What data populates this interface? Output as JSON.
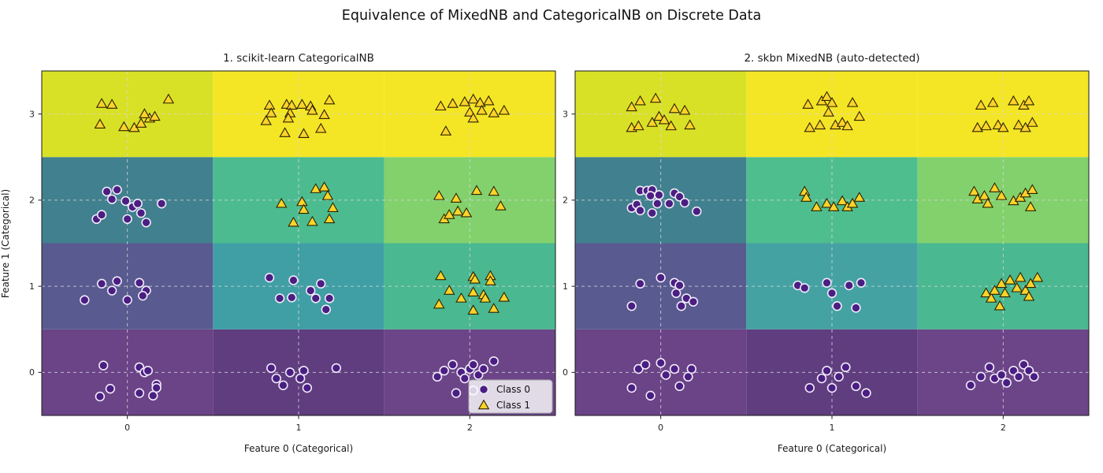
{
  "figure": {
    "title": "Equivalence of MixedNB and CategoricalNB on Discrete Data",
    "background": "#ffffff"
  },
  "chart_data": {
    "type": "scatter",
    "subtype": "decision-regions-with-scatter",
    "x_range": [
      -0.5,
      2.5
    ],
    "y_range": [
      -0.5,
      3.5
    ],
    "x_ticks": [
      0,
      1,
      2
    ],
    "y_ticks": [
      0,
      1,
      2,
      3
    ],
    "xlabel": "Feature 0 (Categorical)",
    "ylabel": "Feature 1 (Categorical)",
    "grid": {
      "visible": true,
      "style": "dashed",
      "color": "#d8d8d8"
    },
    "classes": [
      {
        "name": "Class 0",
        "marker": "circle",
        "fill": "#4a1e82",
        "edge": "#f0ebf8"
      },
      {
        "name": "Class 1",
        "marker": "triangle",
        "fill": "#fdd32a",
        "edge": "#2b2200"
      }
    ],
    "panels": [
      {
        "title": "1. scikit-learn CategoricalNB",
        "legend": {
          "visible": true,
          "location": "lower right",
          "items": [
            "Class 0",
            "Class 1"
          ]
        },
        "cell_colors": [
          [
            "#6b4387",
            "#603d7f",
            "#6c4588"
          ],
          [
            "#585a90",
            "#3f9fa5",
            "#4ab890"
          ],
          [
            "#41808e",
            "#4cbc90",
            "#82d16d"
          ],
          [
            "#d9e126",
            "#f4e625",
            "#f4e625"
          ]
        ],
        "class0_points": [
          [
            -0.12,
            2.1
          ],
          [
            -0.06,
            2.12
          ],
          [
            -0.09,
            2.01
          ],
          [
            -0.01,
            1.99
          ],
          [
            0.03,
            1.92
          ],
          [
            0.06,
            1.96
          ],
          [
            0.0,
            1.78
          ],
          [
            -0.18,
            1.78
          ],
          [
            0.08,
            1.85
          ],
          [
            0.2,
            1.96
          ],
          [
            0.11,
            1.74
          ],
          [
            -0.15,
            1.83
          ],
          [
            -0.25,
            0.84
          ],
          [
            -0.15,
            1.03
          ],
          [
            -0.06,
            1.06
          ],
          [
            -0.09,
            0.95
          ],
          [
            0.0,
            0.84
          ],
          [
            0.07,
            1.04
          ],
          [
            0.11,
            0.95
          ],
          [
            0.09,
            0.89
          ],
          [
            0.83,
            1.1
          ],
          [
            0.89,
            0.86
          ],
          [
            0.96,
            0.87
          ],
          [
            0.97,
            1.07
          ],
          [
            1.07,
            0.95
          ],
          [
            1.1,
            0.86
          ],
          [
            1.13,
            1.03
          ],
          [
            1.18,
            0.86
          ],
          [
            1.16,
            0.73
          ],
          [
            -0.14,
            0.08
          ],
          [
            0.07,
            0.06
          ],
          [
            0.1,
            0.0
          ],
          [
            0.12,
            0.02
          ],
          [
            0.17,
            -0.14
          ],
          [
            0.17,
            -0.18
          ],
          [
            -0.1,
            -0.19
          ],
          [
            -0.16,
            -0.28
          ],
          [
            0.07,
            -0.24
          ],
          [
            0.15,
            -0.27
          ],
          [
            0.84,
            0.05
          ],
          [
            0.91,
            -0.15
          ],
          [
            0.95,
            0.0
          ],
          [
            1.03,
            0.02
          ],
          [
            1.01,
            -0.07
          ],
          [
            1.05,
            -0.18
          ],
          [
            1.22,
            0.05
          ],
          [
            0.87,
            -0.07
          ],
          [
            1.81,
            -0.05
          ],
          [
            1.85,
            0.02
          ],
          [
            1.9,
            0.09
          ],
          [
            1.95,
            0.0
          ],
          [
            1.97,
            -0.07
          ],
          [
            2.0,
            0.04
          ],
          [
            2.02,
            0.09
          ],
          [
            2.05,
            -0.03
          ],
          [
            2.08,
            0.04
          ],
          [
            2.14,
            0.13
          ],
          [
            2.02,
            -0.21
          ],
          [
            1.92,
            -0.24
          ]
        ],
        "class1_points": [
          [
            -0.15,
            3.12
          ],
          [
            -0.09,
            3.11
          ],
          [
            -0.16,
            2.88
          ],
          [
            -0.02,
            2.85
          ],
          [
            0.04,
            2.84
          ],
          [
            0.08,
            2.89
          ],
          [
            0.13,
            2.95
          ],
          [
            0.1,
            3.0
          ],
          [
            0.16,
            2.97
          ],
          [
            0.24,
            3.17
          ],
          [
            0.83,
            3.1
          ],
          [
            0.93,
            3.11
          ],
          [
            0.96,
            3.1
          ],
          [
            1.02,
            3.11
          ],
          [
            1.07,
            3.09
          ],
          [
            1.18,
            3.16
          ],
          [
            0.84,
            3.01
          ],
          [
            0.95,
            3.01
          ],
          [
            1.08,
            3.04
          ],
          [
            1.15,
            2.99
          ],
          [
            0.81,
            2.92
          ],
          [
            0.94,
            2.95
          ],
          [
            0.92,
            2.78
          ],
          [
            1.03,
            2.77
          ],
          [
            1.13,
            2.83
          ],
          [
            1.83,
            3.09
          ],
          [
            1.9,
            3.12
          ],
          [
            1.97,
            3.14
          ],
          [
            2.02,
            3.17
          ],
          [
            2.06,
            3.13
          ],
          [
            2.11,
            3.15
          ],
          [
            2.0,
            3.02
          ],
          [
            2.07,
            3.04
          ],
          [
            2.14,
            3.01
          ],
          [
            2.2,
            3.04
          ],
          [
            2.02,
            2.95
          ],
          [
            1.86,
            2.8
          ],
          [
            1.1,
            2.13
          ],
          [
            1.15,
            2.15
          ],
          [
            1.17,
            2.05
          ],
          [
            0.9,
            1.96
          ],
          [
            1.02,
            1.98
          ],
          [
            1.03,
            1.89
          ],
          [
            1.2,
            1.91
          ],
          [
            1.18,
            1.78
          ],
          [
            0.97,
            1.74
          ],
          [
            1.08,
            1.75
          ],
          [
            1.82,
            2.05
          ],
          [
            1.92,
            2.02
          ],
          [
            2.04,
            2.11
          ],
          [
            2.14,
            2.1
          ],
          [
            2.18,
            1.93
          ],
          [
            1.85,
            1.78
          ],
          [
            1.88,
            1.83
          ],
          [
            1.93,
            1.87
          ],
          [
            1.98,
            1.85
          ],
          [
            1.83,
            1.12
          ],
          [
            2.02,
            1.11
          ],
          [
            2.03,
            1.08
          ],
          [
            2.12,
            1.12
          ],
          [
            2.12,
            1.06
          ],
          [
            1.88,
            0.95
          ],
          [
            2.02,
            0.93
          ],
          [
            2.08,
            0.9
          ],
          [
            2.09,
            0.86
          ],
          [
            2.2,
            0.87
          ],
          [
            1.95,
            0.86
          ],
          [
            1.82,
            0.79
          ],
          [
            2.02,
            0.72
          ],
          [
            2.14,
            0.74
          ]
        ]
      },
      {
        "title": "2. skbn MixedNB (auto-detected)",
        "legend": {
          "visible": false,
          "location": "",
          "items": []
        },
        "cell_colors": [
          [
            "#6b4387",
            "#603d7f",
            "#6c4588"
          ],
          [
            "#585a90",
            "#44a2a3",
            "#4ab890"
          ],
          [
            "#41808e",
            "#4fbe8e",
            "#82d16d"
          ],
          [
            "#d9e126",
            "#f4e625",
            "#f4e625"
          ]
        ],
        "class0_points": [
          [
            -0.12,
            2.11
          ],
          [
            -0.08,
            2.11
          ],
          [
            -0.05,
            2.12
          ],
          [
            -0.06,
            2.05
          ],
          [
            -0.01,
            2.06
          ],
          [
            -0.02,
            1.96
          ],
          [
            0.05,
            1.96
          ],
          [
            0.08,
            2.08
          ],
          [
            0.11,
            2.04
          ],
          [
            0.14,
            1.97
          ],
          [
            -0.17,
            1.91
          ],
          [
            -0.14,
            1.95
          ],
          [
            -0.12,
            1.88
          ],
          [
            -0.05,
            1.85
          ],
          [
            0.21,
            1.87
          ],
          [
            -0.17,
            0.77
          ],
          [
            -0.12,
            1.03
          ],
          [
            0.0,
            1.1
          ],
          [
            0.08,
            1.04
          ],
          [
            0.11,
            1.01
          ],
          [
            0.09,
            0.92
          ],
          [
            0.15,
            0.86
          ],
          [
            0.12,
            0.77
          ],
          [
            0.19,
            0.82
          ],
          [
            0.8,
            1.01
          ],
          [
            0.84,
            0.98
          ],
          [
            0.97,
            1.04
          ],
          [
            1.0,
            0.92
          ],
          [
            1.03,
            0.77
          ],
          [
            1.1,
            1.01
          ],
          [
            1.14,
            0.75
          ],
          [
            1.17,
            1.04
          ],
          [
            -0.17,
            -0.18
          ],
          [
            -0.13,
            0.04
          ],
          [
            -0.09,
            0.09
          ],
          [
            -0.06,
            -0.27
          ],
          [
            0.0,
            0.11
          ],
          [
            0.03,
            -0.03
          ],
          [
            0.08,
            0.04
          ],
          [
            0.11,
            -0.16
          ],
          [
            0.18,
            0.04
          ],
          [
            0.16,
            -0.05
          ],
          [
            0.87,
            -0.18
          ],
          [
            0.94,
            -0.07
          ],
          [
            0.97,
            0.02
          ],
          [
            1.0,
            -0.18
          ],
          [
            1.04,
            -0.05
          ],
          [
            1.08,
            0.06
          ],
          [
            1.14,
            -0.16
          ],
          [
            1.2,
            -0.24
          ],
          [
            1.81,
            -0.15
          ],
          [
            1.87,
            -0.05
          ],
          [
            1.92,
            0.06
          ],
          [
            1.95,
            -0.07
          ],
          [
            1.99,
            -0.03
          ],
          [
            2.02,
            -0.12
          ],
          [
            2.06,
            0.02
          ],
          [
            2.09,
            -0.05
          ],
          [
            2.12,
            0.09
          ],
          [
            2.15,
            0.02
          ],
          [
            2.18,
            -0.05
          ]
        ],
        "class1_points": [
          [
            -0.17,
            3.08
          ],
          [
            -0.12,
            3.15
          ],
          [
            -0.03,
            3.18
          ],
          [
            -0.17,
            2.84
          ],
          [
            -0.13,
            2.86
          ],
          [
            -0.05,
            2.9
          ],
          [
            -0.01,
            2.97
          ],
          [
            0.02,
            2.93
          ],
          [
            0.08,
            3.06
          ],
          [
            0.14,
            3.04
          ],
          [
            0.06,
            2.86
          ],
          [
            0.17,
            2.87
          ],
          [
            0.86,
            3.11
          ],
          [
            0.94,
            3.15
          ],
          [
            0.97,
            3.2
          ],
          [
            1.0,
            3.13
          ],
          [
            0.98,
            3.02
          ],
          [
            0.93,
            2.87
          ],
          [
            0.87,
            2.84
          ],
          [
            1.02,
            2.87
          ],
          [
            1.06,
            2.9
          ],
          [
            1.09,
            2.86
          ],
          [
            1.12,
            3.13
          ],
          [
            1.16,
            2.97
          ],
          [
            1.87,
            3.1
          ],
          [
            1.94,
            3.13
          ],
          [
            2.06,
            3.15
          ],
          [
            2.12,
            3.1
          ],
          [
            2.15,
            3.15
          ],
          [
            1.85,
            2.84
          ],
          [
            1.9,
            2.86
          ],
          [
            1.97,
            2.87
          ],
          [
            2.0,
            2.84
          ],
          [
            2.09,
            2.87
          ],
          [
            2.13,
            2.84
          ],
          [
            2.17,
            2.9
          ],
          [
            0.84,
            2.1
          ],
          [
            0.85,
            2.03
          ],
          [
            0.91,
            1.92
          ],
          [
            0.97,
            1.96
          ],
          [
            1.01,
            1.92
          ],
          [
            1.06,
            1.99
          ],
          [
            1.09,
            1.92
          ],
          [
            1.12,
            1.96
          ],
          [
            1.16,
            2.03
          ],
          [
            1.83,
            2.1
          ],
          [
            1.85,
            2.01
          ],
          [
            1.89,
            2.05
          ],
          [
            1.91,
            1.96
          ],
          [
            1.95,
            2.14
          ],
          [
            1.99,
            2.05
          ],
          [
            2.06,
            1.99
          ],
          [
            2.1,
            2.03
          ],
          [
            2.13,
            2.08
          ],
          [
            2.16,
            1.92
          ],
          [
            2.17,
            2.12
          ],
          [
            1.9,
            0.92
          ],
          [
            1.93,
            0.86
          ],
          [
            1.95,
            0.95
          ],
          [
            1.99,
            1.03
          ],
          [
            2.01,
            0.92
          ],
          [
            2.04,
            1.07
          ],
          [
            2.08,
            0.98
          ],
          [
            2.1,
            1.1
          ],
          [
            2.13,
            0.95
          ],
          [
            2.16,
            1.03
          ],
          [
            2.2,
            1.1
          ],
          [
            1.98,
            0.77
          ],
          [
            2.15,
            0.88
          ]
        ]
      }
    ]
  }
}
